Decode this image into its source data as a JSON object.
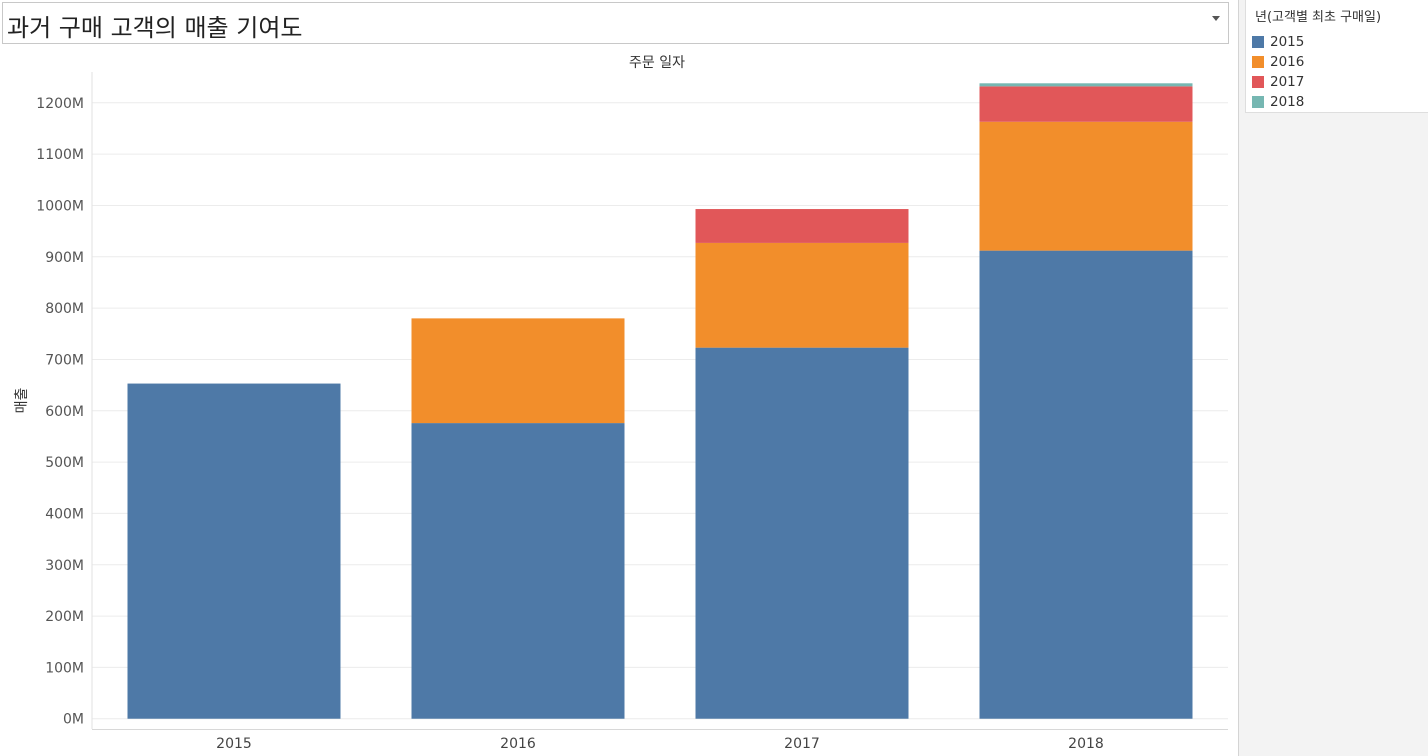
{
  "title": "과거 구매 고객의 매출 기여도",
  "legend": {
    "title": "년(고객별 최초 구매일)",
    "items": [
      {
        "label": "2015",
        "color": "#4e79a7"
      },
      {
        "label": "2016",
        "color": "#f28e2b"
      },
      {
        "label": "2017",
        "color": "#e15759"
      },
      {
        "label": "2018",
        "color": "#76b7b2"
      }
    ]
  },
  "chart_data": {
    "type": "bar",
    "stacked": true,
    "title": "주문 일자",
    "xlabel": "",
    "ylabel": "매출",
    "categories": [
      "2015",
      "2016",
      "2017",
      "2018"
    ],
    "series": [
      {
        "name": "2015",
        "color": "#4e79a7",
        "values": [
          653,
          576,
          723,
          912
        ]
      },
      {
        "name": "2016",
        "color": "#f28e2b",
        "values": [
          0,
          204,
          204,
          251
        ]
      },
      {
        "name": "2017",
        "color": "#e15759",
        "values": [
          0,
          0,
          66,
          69
        ]
      },
      {
        "name": "2018",
        "color": "#76b7b2",
        "values": [
          0,
          0,
          0,
          6
        ]
      }
    ],
    "ylim": [
      -20,
      1260
    ],
    "yticks": [
      0,
      100,
      200,
      300,
      400,
      500,
      600,
      700,
      800,
      900,
      1000,
      1100,
      1200
    ],
    "ytick_labels": [
      "0M",
      "100M",
      "200M",
      "300M",
      "400M",
      "500M",
      "600M",
      "700M",
      "800M",
      "900M",
      "1000M",
      "1100M",
      "1200M"
    ],
    "grid": true,
    "legend_position": "right"
  }
}
